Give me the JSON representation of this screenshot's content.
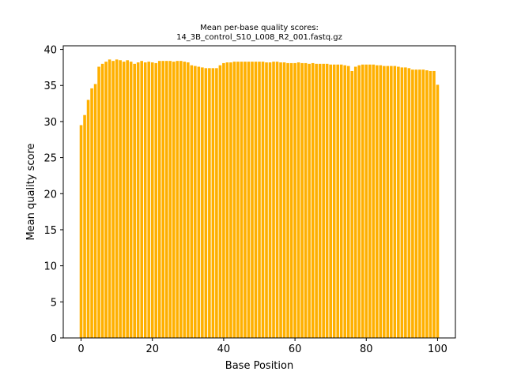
{
  "chart_data": {
    "type": "bar",
    "title_lines": [
      "Mean per-base quality scores:",
      "14_3B_control_S10_L008_R2_001.fastq.gz"
    ],
    "xlabel": "Base Position",
    "ylabel": "Mean quality score",
    "xlim": [
      -5,
      105
    ],
    "ylim": [
      0,
      40.5
    ],
    "xticks": [
      0,
      20,
      40,
      60,
      80,
      100
    ],
    "yticks": [
      0,
      5,
      10,
      15,
      20,
      25,
      30,
      35,
      40
    ],
    "bar_color": "#FFB000",
    "grid": false,
    "x": [
      0,
      1,
      2,
      3,
      4,
      5,
      6,
      7,
      8,
      9,
      10,
      11,
      12,
      13,
      14,
      15,
      16,
      17,
      18,
      19,
      20,
      21,
      22,
      23,
      24,
      25,
      26,
      27,
      28,
      29,
      30,
      31,
      32,
      33,
      34,
      35,
      36,
      37,
      38,
      39,
      40,
      41,
      42,
      43,
      44,
      45,
      46,
      47,
      48,
      49,
      50,
      51,
      52,
      53,
      54,
      55,
      56,
      57,
      58,
      59,
      60,
      61,
      62,
      63,
      64,
      65,
      66,
      67,
      68,
      69,
      70,
      71,
      72,
      73,
      74,
      75,
      76,
      77,
      78,
      79,
      80,
      81,
      82,
      83,
      84,
      85,
      86,
      87,
      88,
      89,
      90,
      91,
      92,
      93,
      94,
      95,
      96,
      97,
      98,
      99,
      100
    ],
    "values": [
      29.5,
      30.9,
      33.0,
      34.6,
      35.2,
      37.6,
      38.0,
      38.3,
      38.6,
      38.4,
      38.6,
      38.5,
      38.3,
      38.5,
      38.3,
      38.0,
      38.2,
      38.4,
      38.2,
      38.3,
      38.2,
      38.1,
      38.4,
      38.4,
      38.4,
      38.4,
      38.3,
      38.4,
      38.4,
      38.3,
      38.2,
      37.8,
      37.7,
      37.6,
      37.5,
      37.4,
      37.4,
      37.4,
      37.4,
      37.8,
      38.1,
      38.2,
      38.2,
      38.3,
      38.3,
      38.3,
      38.3,
      38.3,
      38.3,
      38.3,
      38.3,
      38.3,
      38.2,
      38.2,
      38.3,
      38.3,
      38.2,
      38.2,
      38.1,
      38.1,
      38.1,
      38.2,
      38.1,
      38.1,
      38.0,
      38.1,
      38.0,
      38.0,
      38.0,
      38.0,
      37.9,
      37.9,
      37.9,
      37.9,
      37.8,
      37.7,
      37.0,
      37.6,
      37.8,
      37.9,
      37.9,
      37.9,
      37.9,
      37.8,
      37.8,
      37.7,
      37.7,
      37.7,
      37.7,
      37.6,
      37.5,
      37.5,
      37.4,
      37.2,
      37.2,
      37.2,
      37.2,
      37.1,
      37.0,
      37.0,
      35.1
    ]
  }
}
